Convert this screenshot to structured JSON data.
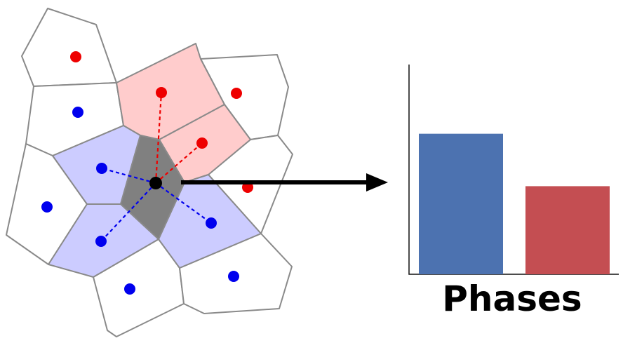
{
  "colors": {
    "phase_a": "#0000ee",
    "phase_b": "#ee0000",
    "phase_a_fill": "#ccccff",
    "phase_b_fill": "#ffcccc",
    "focus_cell_fill": "#808080",
    "bar_a": "#4c72b0",
    "bar_b": "#c44e52",
    "cell_edge": "#8a8a8a",
    "arrow": "#000000"
  },
  "icons": {
    "arrow": "right-arrow-icon"
  },
  "bar_chart": {
    "label": "Phases",
    "bars": [
      {
        "phase": "phase_a",
        "value": 0.67
      },
      {
        "phase": "phase_b",
        "value": 0.42
      }
    ]
  }
}
